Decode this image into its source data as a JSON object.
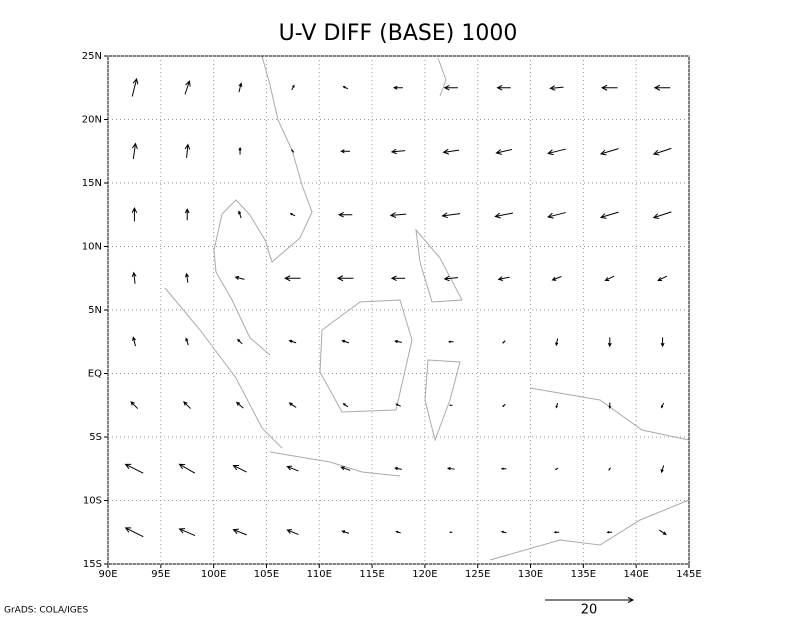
{
  "chart_data": {
    "type": "vector",
    "title": "U-V DIFF (BASE) 1000",
    "xlim": [
      90,
      145
    ],
    "ylim": [
      -15,
      25
    ],
    "xticks": [
      {
        "value": 90,
        "label": "90E"
      },
      {
        "value": 95,
        "label": "95E"
      },
      {
        "value": 100,
        "label": "100E"
      },
      {
        "value": 105,
        "label": "105E"
      },
      {
        "value": 110,
        "label": "110E"
      },
      {
        "value": 115,
        "label": "115E"
      },
      {
        "value": 120,
        "label": "120E"
      },
      {
        "value": 125,
        "label": "125E"
      },
      {
        "value": 130,
        "label": "130E"
      },
      {
        "value": 135,
        "label": "135E"
      },
      {
        "value": 140,
        "label": "140E"
      },
      {
        "value": 145,
        "label": "145E"
      }
    ],
    "yticks": [
      {
        "value": -15,
        "label": "15S"
      },
      {
        "value": -10,
        "label": "10S"
      },
      {
        "value": -5,
        "label": "5S"
      },
      {
        "value": 0,
        "label": "EQ"
      },
      {
        "value": 5,
        "label": "5N"
      },
      {
        "value": 10,
        "label": "10N"
      },
      {
        "value": 15,
        "label": "15N"
      },
      {
        "value": 20,
        "label": "20N"
      },
      {
        "value": 25,
        "label": "25N"
      }
    ],
    "grid": true,
    "color": "#000000",
    "lon": [
      92.5,
      97.5,
      102.5,
      107.5,
      112.5,
      117.5,
      122.5,
      127.5,
      132.5,
      137.5,
      142.5
    ],
    "lat": [
      22.5,
      17.5,
      12.5,
      7.5,
      2.5,
      -2.5,
      -7.5,
      -12.5
    ],
    "u": [
      [
        1,
        1,
        0.5,
        0.5,
        -1,
        -2,
        -3,
        -3,
        -3,
        -3.5,
        -3.5
      ],
      [
        0.5,
        0.3,
        0,
        -0.5,
        -2,
        -3,
        -3.5,
        -3.5,
        -4,
        -4,
        -4
      ],
      [
        0,
        0,
        -0.5,
        -1,
        -3,
        -3.5,
        -4,
        -4,
        -4,
        -4,
        -4
      ],
      [
        -0.3,
        -0.3,
        -2,
        -3.5,
        -3.5,
        -3,
        -3,
        -2.5,
        -2,
        -2,
        -2
      ],
      [
        -0.5,
        -0.5,
        -1,
        -1.5,
        -1.5,
        -1.5,
        -1,
        -0.5,
        -0.3,
        0,
        0
      ],
      [
        -1.5,
        -1.5,
        -1.5,
        -1.5,
        -1,
        -1,
        -0.5,
        -0.5,
        -0.3,
        0,
        -0.5
      ],
      [
        -4,
        -3.5,
        -3,
        -2.5,
        -2,
        -1.5,
        -1.5,
        -1,
        -0.5,
        -0.3,
        -0.5
      ],
      [
        -4,
        -3.5,
        -3,
        -2.5,
        -1.5,
        -1,
        -0.5,
        -1,
        -1,
        -1,
        1.5
      ]
    ],
    "v": [
      [
        4,
        3,
        2,
        1,
        0.5,
        0,
        0,
        0,
        -0.3,
        0,
        0
      ],
      [
        3.5,
        3,
        1.5,
        0.5,
        0,
        -0.3,
        -0.5,
        -0.8,
        -1,
        -1.2,
        -1.3
      ],
      [
        3,
        2.5,
        1.5,
        0.5,
        0,
        -0.3,
        -0.5,
        -0.8,
        -1,
        -1.2,
        -1.3
      ],
      [
        2.5,
        2,
        0.5,
        0,
        0,
        0,
        -0.3,
        -0.5,
        -0.8,
        -1,
        -1
      ],
      [
        2,
        1.5,
        1,
        0.5,
        0.5,
        0.3,
        0,
        -0.5,
        -1.5,
        -2,
        -2
      ],
      [
        1.5,
        1.5,
        1.3,
        1,
        0.7,
        0.5,
        0,
        -0.5,
        -1,
        -1.2,
        -1
      ],
      [
        2,
        2,
        1.5,
        1,
        0.7,
        0.3,
        0.2,
        0,
        -0.3,
        -0.5,
        -1.5
      ],
      [
        2,
        1.5,
        1.2,
        1,
        0.5,
        0.3,
        0,
        0.3,
        0,
        0,
        -1
      ]
    ],
    "ref_vector": 20,
    "footer": "GrADS: COLA/IGES"
  }
}
